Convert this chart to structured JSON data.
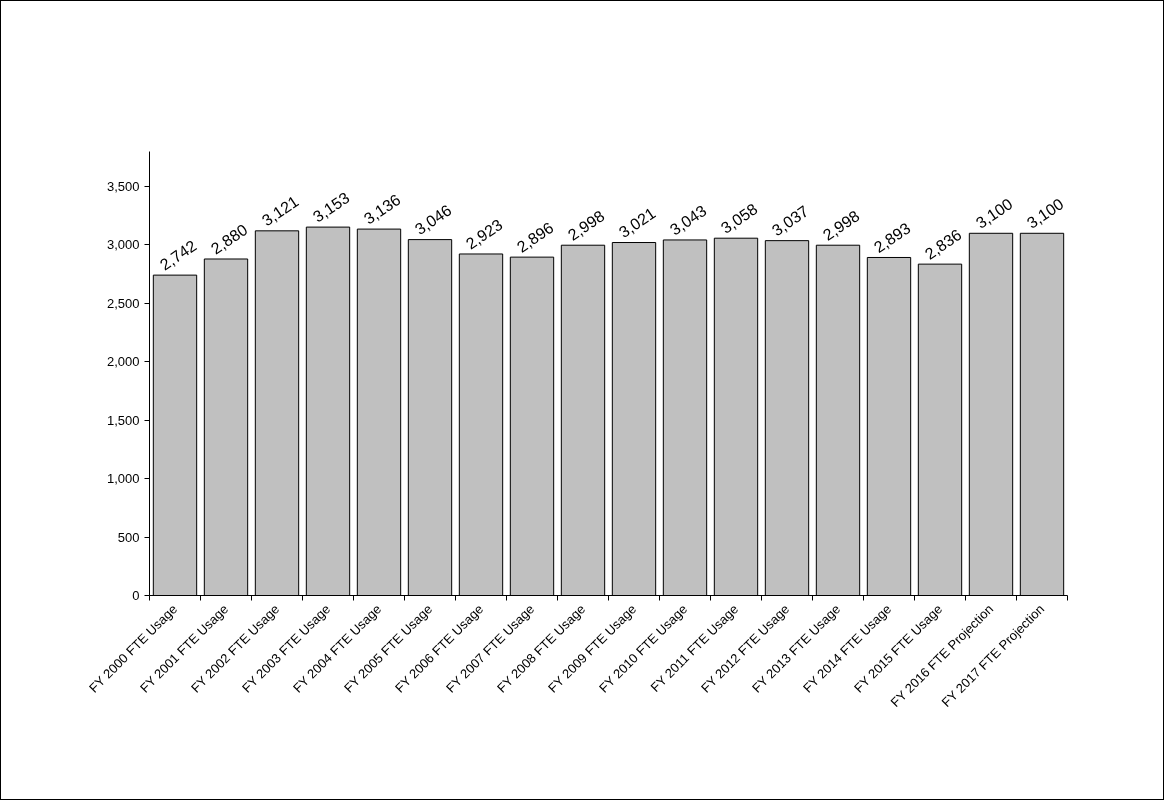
{
  "chart_data": {
    "type": "bar",
    "categories": [
      "FY 2000 FTE Usage",
      "FY 2001 FTE Usage",
      "FY 2002 FTE Usage",
      "FY 2003 FTE Usage",
      "FY 2004 FTE Usage",
      "FY 2005 FTE Usage",
      "FY 2006 FTE Usage",
      "FY 2007 FTE Usage",
      "FY 2008 FTE Usage",
      "FY 2009 FTE Usage",
      "FY 2010 FTE Usage",
      "FY 2011 FTE Usage",
      "FY 2012 FTE Usage",
      "FY 2013 FTE Usage",
      "FY 2014 FTE Usage",
      "FY 2015 FTE Usage",
      "FY 2016 FTE Projection",
      "FY 2017 FTE Projection"
    ],
    "values": [
      2742,
      2880,
      3121,
      3153,
      3136,
      3046,
      2923,
      2896,
      2998,
      3021,
      3043,
      3058,
      3037,
      2998,
      2893,
      2836,
      3100,
      3100
    ],
    "value_labels": [
      "2,742",
      "2,880",
      "3,121",
      "3,153",
      "3,136",
      "3,046",
      "2,923",
      "2,896",
      "2,998",
      "3,021",
      "3,043",
      "3,058",
      "3,037",
      "2,998",
      "2,893",
      "2,836",
      "3,100",
      "3,100"
    ],
    "color": "#c0c0c0",
    "ylim": [
      0,
      3800
    ],
    "yticks": [
      {
        "value": 0,
        "label": "0"
      },
      {
        "value": 500,
        "label": "500"
      },
      {
        "value": 1000,
        "label": "1,000"
      },
      {
        "value": 1500,
        "label": "1,500"
      },
      {
        "value": 2000,
        "label": "2,000"
      },
      {
        "value": 2500,
        "label": "2,500"
      },
      {
        "value": 3000,
        "label": "3,000"
      },
      {
        "value": 3500,
        "label": "3,500"
      }
    ],
    "grid": false
  }
}
